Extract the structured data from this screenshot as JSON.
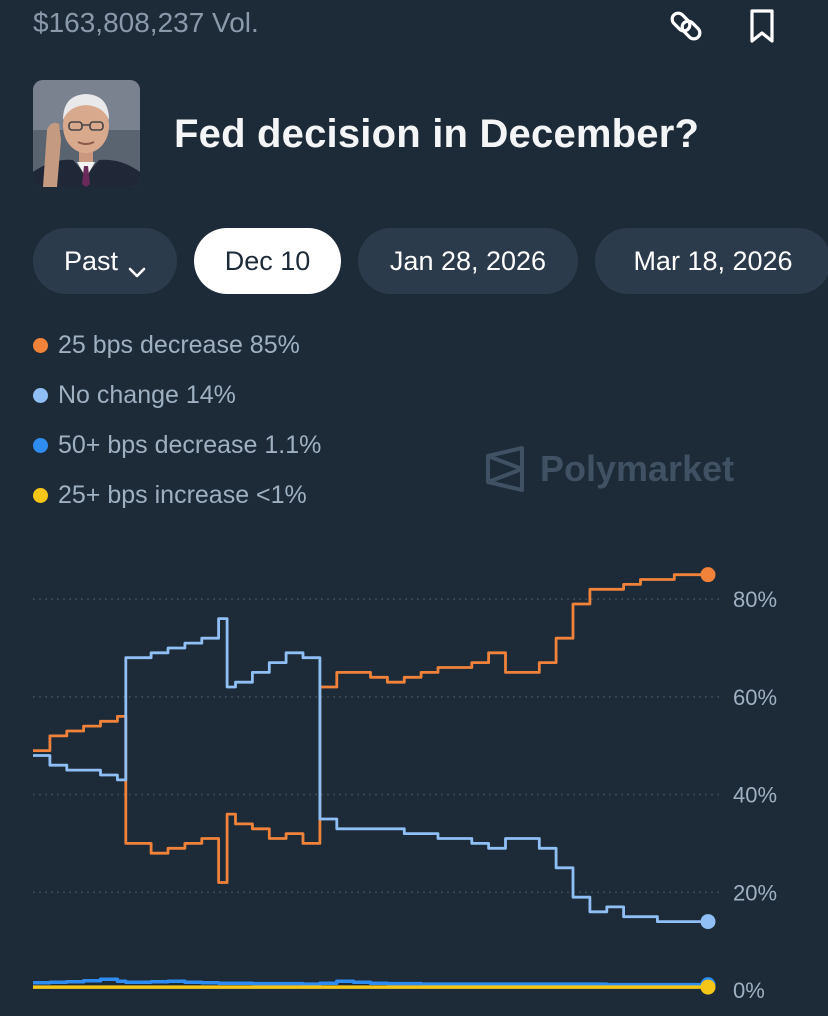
{
  "header": {
    "volume": "$163,808,237 Vol."
  },
  "market": {
    "title": "Fed decision in December?"
  },
  "tabs": [
    {
      "label": "Past"
    },
    {
      "label": "Dec 10"
    },
    {
      "label": "Jan 28, 2026"
    },
    {
      "label": "Mar 18, 2026"
    }
  ],
  "legend": [
    {
      "label": "25 bps decrease 85%",
      "color": "#f0823a"
    },
    {
      "label": "No change 14%",
      "color": "#90bff5"
    },
    {
      "label": "50+ bps decrease 1.1%",
      "color": "#2f8cf0"
    },
    {
      "label": "25+ bps increase <1%",
      "color": "#f5c518"
    }
  ],
  "watermark": {
    "text": "Polymarket"
  },
  "chart_data": {
    "type": "line",
    "ylim": [
      0,
      88
    ],
    "y_ticks": [
      "80%",
      "60%",
      "40%",
      "20%",
      "0%"
    ],
    "tick_values": [
      80,
      60,
      40,
      20,
      0
    ],
    "grid": "dotted",
    "x": [
      0,
      1,
      2,
      3,
      4,
      5,
      5.5,
      6,
      7,
      8,
      9,
      10,
      11,
      11.5,
      12,
      13,
      14,
      15,
      16,
      17,
      18,
      19,
      20,
      21,
      22,
      23,
      24,
      25,
      26,
      27,
      28,
      29,
      30,
      31,
      32,
      33,
      34,
      35,
      36,
      37,
      38,
      39,
      40
    ],
    "series": [
      {
        "name": "25 bps decrease",
        "color": "#f0823a",
        "values": [
          49,
          52,
          53,
          54,
          55,
          56,
          30,
          30,
          28,
          29,
          30,
          31,
          22,
          36,
          34,
          33,
          31,
          32,
          30,
          62,
          65,
          65,
          64,
          63,
          64,
          65,
          66,
          66,
          67,
          69,
          65,
          65,
          67,
          72,
          79,
          82,
          82,
          83,
          84,
          84,
          85,
          85,
          85
        ]
      },
      {
        "name": "No change",
        "color": "#90bff5",
        "values": [
          48,
          46,
          45,
          45,
          44,
          43,
          68,
          68,
          69,
          70,
          71,
          72,
          76,
          62,
          63,
          65,
          67,
          69,
          68,
          35,
          33,
          33,
          33,
          33,
          32,
          32,
          31,
          31,
          30,
          29,
          31,
          31,
          29,
          25,
          19,
          16,
          17,
          15,
          15,
          14,
          14,
          14,
          14
        ]
      },
      {
        "name": "50+ bps decrease",
        "color": "#2f8cf0",
        "values": [
          1.5,
          1.6,
          1.7,
          1.9,
          2.2,
          1.8,
          1.6,
          1.6,
          1.7,
          1.8,
          1.6,
          1.5,
          1.4,
          1.4,
          1.4,
          1.3,
          1.3,
          1.3,
          1.2,
          1.4,
          1.8,
          1.6,
          1.4,
          1.3,
          1.3,
          1.2,
          1.2,
          1.2,
          1.2,
          1.2,
          1.2,
          1.2,
          1.2,
          1.2,
          1.2,
          1.2,
          1.1,
          1.1,
          1.1,
          1.1,
          1.1,
          1.1,
          1.1
        ]
      },
      {
        "name": "25+ bps increase",
        "color": "#f5c518",
        "values": [
          0.6,
          0.6,
          0.6,
          0.6,
          0.6,
          0.6,
          0.6,
          0.6,
          0.6,
          0.6,
          0.6,
          0.6,
          0.6,
          0.6,
          0.6,
          0.6,
          0.6,
          0.6,
          0.6,
          0.6,
          0.6,
          0.6,
          0.6,
          0.6,
          0.6,
          0.6,
          0.6,
          0.6,
          0.6,
          0.6,
          0.6,
          0.6,
          0.6,
          0.6,
          0.6,
          0.6,
          0.6,
          0.6,
          0.6,
          0.6,
          0.6,
          0.6,
          0.6
        ]
      }
    ]
  }
}
